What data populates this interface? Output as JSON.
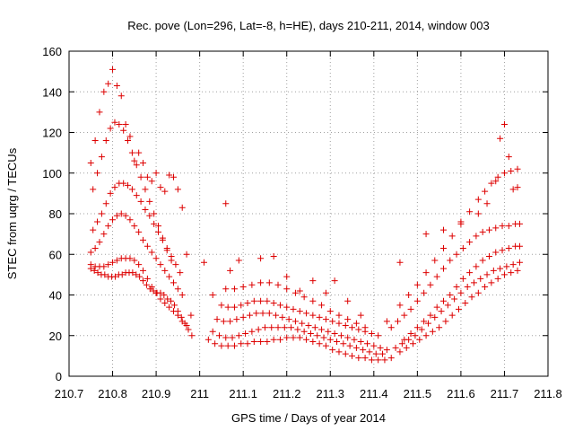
{
  "chart_data": {
    "type": "scatter",
    "title": "Rec. pove (Lon=296, Lat=-8, h=HE), days 210-211, 2014, window 003",
    "xlabel": "GPS time / Days of year 2014",
    "ylabel": "STEC from uqrg / TECUs",
    "xlim": [
      210.7,
      211.8
    ],
    "ylim": [
      0,
      160
    ],
    "xticks": [
      210.7,
      210.8,
      210.9,
      211,
      211.1,
      211.2,
      211.3,
      211.4,
      211.5,
      211.6,
      211.7,
      211.8
    ],
    "xtick_labels": [
      "210.7",
      "210.8",
      "210.9",
      "211",
      "211.1",
      "211.2",
      "211.3",
      "211.4",
      "211.5",
      "211.6",
      "211.7",
      "211.8"
    ],
    "yticks": [
      0,
      20,
      40,
      60,
      80,
      100,
      120,
      140,
      160
    ],
    "ytick_labels": [
      "0",
      "20",
      "40",
      "60",
      "80",
      "100",
      "120",
      "140",
      "160"
    ],
    "grid": true,
    "marker": "+",
    "color": "#dd0000",
    "series": [
      {
        "x": [
          210.75,
          210.758,
          210.766,
          210.774,
          210.782,
          210.79,
          210.798,
          210.806,
          210.814,
          210.822,
          210.83,
          210.838,
          210.846,
          210.854,
          210.862,
          210.87,
          210.878,
          210.886,
          210.894,
          210.902,
          210.91,
          210.918,
          210.926,
          210.934,
          210.942,
          210.95,
          210.958,
          210.966,
          210.974,
          210.982,
          211.02,
          211.035,
          211.05,
          211.065,
          211.08,
          211.095,
          211.11,
          211.125,
          211.14,
          211.155,
          211.17,
          211.185,
          211.2,
          211.215,
          211.23,
          211.245,
          211.26,
          211.275,
          211.29,
          211.305,
          211.32,
          211.335,
          211.35,
          211.365,
          211.38,
          211.395,
          211.41,
          211.425,
          211.44,
          211.46,
          211.475,
          211.49,
          211.505,
          211.52,
          211.535,
          211.55,
          211.565,
          211.58,
          211.595,
          211.61,
          211.625,
          211.64,
          211.655,
          211.67,
          211.685,
          211.7,
          211.715,
          211.73
        ],
        "y": [
          53,
          52,
          51,
          50,
          50,
          49,
          49,
          49,
          50,
          50,
          51,
          51,
          51,
          50,
          49,
          47,
          45,
          43,
          42,
          41,
          41,
          40,
          38,
          37,
          35,
          32,
          29,
          26,
          23,
          20,
          18,
          16,
          15,
          15,
          15,
          16,
          16,
          17,
          17,
          17,
          18,
          18,
          19,
          19,
          19,
          18,
          17,
          16,
          15,
          13,
          12,
          11,
          10,
          9,
          9,
          8,
          8,
          8,
          9,
          12,
          14,
          16,
          18,
          20,
          22,
          24,
          27,
          30,
          33,
          36,
          39,
          41,
          44,
          46,
          48,
          50,
          51,
          52
        ]
      },
      {
        "x": [
          210.75,
          210.76,
          210.77,
          210.78,
          210.79,
          210.8,
          210.81,
          210.82,
          210.83,
          210.84,
          210.85,
          210.86,
          210.87,
          210.88,
          210.89,
          210.9,
          210.91,
          210.92,
          210.93,
          210.94,
          210.95,
          210.96,
          210.97,
          211.03,
          211.045,
          211.06,
          211.075,
          211.09,
          211.105,
          211.12,
          211.135,
          211.15,
          211.165,
          211.18,
          211.195,
          211.21,
          211.225,
          211.24,
          211.255,
          211.27,
          211.285,
          211.3,
          211.315,
          211.33,
          211.345,
          211.36,
          211.375,
          211.39,
          211.405,
          211.42,
          211.45,
          211.465,
          211.48,
          211.495,
          211.51,
          211.525,
          211.54,
          211.555,
          211.57,
          211.585,
          211.6,
          211.615,
          211.63,
          211.645,
          211.66,
          211.675,
          211.69,
          211.705,
          211.72,
          211.735
        ],
        "y": [
          55,
          54,
          54,
          54,
          55,
          56,
          57,
          58,
          58,
          58,
          57,
          55,
          52,
          48,
          44,
          41,
          38,
          36,
          34,
          32,
          30,
          27,
          25,
          22,
          20,
          19,
          19,
          20,
          21,
          22,
          23,
          24,
          24,
          24,
          24,
          24,
          23,
          22,
          21,
          20,
          19,
          18,
          17,
          16,
          15,
          14,
          13,
          12,
          11,
          11,
          14,
          16,
          18,
          20,
          23,
          26,
          29,
          32,
          35,
          38,
          41,
          44,
          46,
          48,
          50,
          52,
          53,
          54,
          55,
          56
        ]
      },
      {
        "x": [
          210.75,
          210.76,
          210.77,
          210.78,
          210.79,
          210.8,
          210.81,
          210.82,
          210.83,
          210.84,
          210.85,
          210.86,
          210.87,
          210.88,
          210.89,
          210.9,
          210.91,
          210.92,
          210.93,
          210.94,
          210.95,
          210.96,
          211.04,
          211.055,
          211.07,
          211.085,
          211.1,
          211.115,
          211.13,
          211.145,
          211.16,
          211.175,
          211.19,
          211.205,
          211.22,
          211.235,
          211.25,
          211.265,
          211.28,
          211.295,
          211.31,
          211.325,
          211.34,
          211.355,
          211.37,
          211.385,
          211.4,
          211.415,
          211.43,
          211.47,
          211.485,
          211.5,
          211.515,
          211.53,
          211.545,
          211.56,
          211.575,
          211.59,
          211.605,
          211.62,
          211.635,
          211.65,
          211.665,
          211.68,
          211.695,
          211.71,
          211.725,
          211.735
        ],
        "y": [
          61,
          63,
          66,
          70,
          74,
          77,
          79,
          80,
          79,
          77,
          74,
          71,
          67,
          64,
          61,
          58,
          55,
          52,
          49,
          46,
          43,
          40,
          28,
          27,
          27,
          28,
          29,
          30,
          31,
          31,
          31,
          30,
          29,
          28,
          27,
          26,
          25,
          24,
          23,
          22,
          21,
          20,
          19,
          18,
          17,
          16,
          15,
          14,
          13,
          18,
          21,
          24,
          27,
          30,
          34,
          37,
          40,
          44,
          48,
          51,
          54,
          57,
          59,
          61,
          62,
          63,
          64,
          64
        ]
      },
      {
        "x": [
          210.755,
          210.765,
          210.775,
          210.785,
          210.795,
          210.805,
          210.815,
          210.825,
          210.835,
          210.845,
          210.855,
          210.865,
          210.875,
          210.885,
          210.895,
          210.905,
          210.915,
          210.925,
          210.935,
          210.945,
          210.955,
          211.05,
          211.065,
          211.08,
          211.095,
          211.11,
          211.125,
          211.14,
          211.155,
          211.17,
          211.185,
          211.2,
          211.215,
          211.23,
          211.245,
          211.26,
          211.275,
          211.29,
          211.305,
          211.32,
          211.335,
          211.35,
          211.365,
          211.38,
          211.395,
          211.41,
          211.44,
          211.455,
          211.47,
          211.485,
          211.5,
          211.515,
          211.53,
          211.545,
          211.56,
          211.575,
          211.59,
          211.605,
          211.62,
          211.635,
          211.65,
          211.665,
          211.68,
          211.695,
          211.71,
          211.725,
          211.735
        ],
        "y": [
          72,
          76,
          80,
          85,
          90,
          93,
          95,
          95,
          94,
          92,
          89,
          86,
          82,
          79,
          75,
          71,
          67,
          63,
          59,
          55,
          51,
          35,
          34,
          34,
          35,
          36,
          37,
          37,
          37,
          36,
          35,
          34,
          33,
          32,
          31,
          30,
          29,
          28,
          27,
          26,
          25,
          24,
          23,
          22,
          21,
          20,
          24,
          27,
          30,
          33,
          37,
          41,
          45,
          49,
          53,
          57,
          60,
          63,
          66,
          69,
          71,
          72,
          73,
          74,
          74,
          75,
          75
        ]
      },
      {
        "x": [
          210.755,
          210.765,
          210.775,
          210.785,
          210.795,
          210.805,
          210.815,
          210.825,
          210.835,
          210.845,
          210.855,
          210.865,
          210.875,
          210.885,
          210.895,
          210.905,
          210.915,
          210.925,
          210.935,
          211.06,
          211.08,
          211.1,
          211.12,
          211.14,
          211.16,
          211.18,
          211.2,
          211.22,
          211.24,
          211.26,
          211.28,
          211.3,
          211.32,
          211.34,
          211.36,
          211.38,
          211.46,
          211.48,
          211.5,
          211.52,
          211.54,
          211.56,
          211.58,
          211.6,
          211.62,
          211.64,
          211.655,
          211.67,
          211.685,
          211.7,
          211.715,
          211.73
        ],
        "y": [
          92,
          100,
          108,
          116,
          122,
          125,
          124,
          121,
          116,
          110,
          104,
          98,
          92,
          86,
          80,
          74,
          68,
          62,
          57,
          43,
          43,
          44,
          45,
          46,
          46,
          45,
          43,
          41,
          39,
          37,
          35,
          32,
          30,
          28,
          26,
          24,
          35,
          40,
          45,
          51,
          57,
          63,
          69,
          75,
          81,
          87,
          91,
          95,
          98,
          100,
          101,
          102
        ]
      },
      {
        "x": [
          210.75,
          210.76,
          210.77,
          210.78,
          210.79,
          210.8,
          210.81,
          210.82,
          210.83,
          210.84,
          210.85,
          210.86,
          210.87,
          210.88,
          210.89,
          210.9,
          210.91,
          210.92,
          210.93,
          210.94,
          210.95,
          210.96,
          210.97,
          210.98,
          211.01,
          211.03,
          211.06,
          211.07,
          211.09,
          211.14,
          211.17,
          211.2,
          211.23,
          211.26,
          211.29,
          211.31,
          211.34,
          211.37,
          211.43,
          211.46,
          211.52,
          211.56,
          211.6,
          211.64,
          211.66,
          211.68,
          211.69,
          211.7,
          211.71,
          211.72,
          211.73
        ],
        "y": [
          105,
          116,
          130,
          140,
          144,
          151,
          143,
          138,
          124,
          118,
          106,
          110,
          105,
          98,
          96,
          100,
          93,
          91,
          99,
          98,
          92,
          83,
          60,
          30,
          56,
          40,
          85,
          52,
          57,
          58,
          59,
          49,
          42,
          47,
          41,
          47,
          37,
          30,
          27,
          56,
          70,
          72,
          76,
          80,
          85,
          96,
          117,
          124,
          108,
          92,
          93
        ]
      }
    ]
  }
}
